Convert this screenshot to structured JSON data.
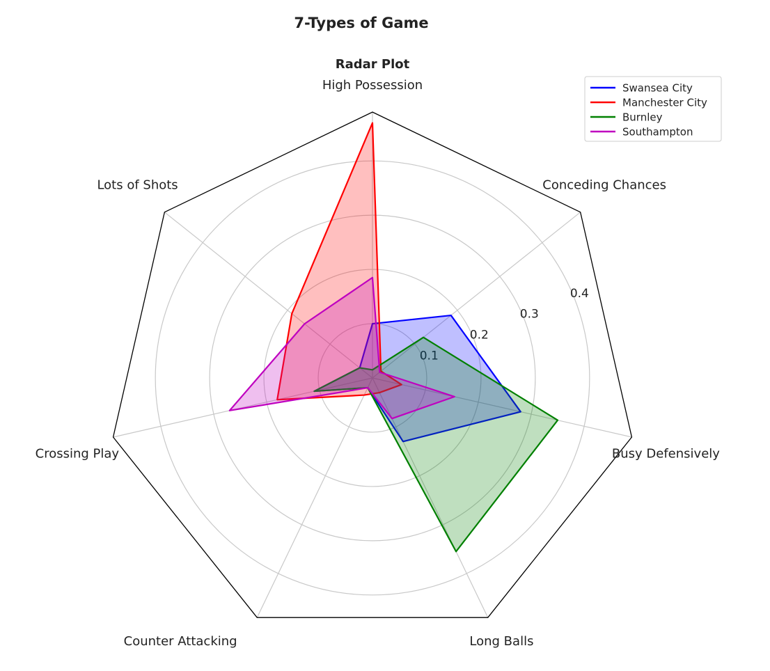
{
  "chart_data": {
    "type": "radar",
    "title": "7-Types of Game",
    "subtitle": "Radar Plot",
    "categories": [
      "High Possession",
      "Conceding Chances",
      "Busy Defensively",
      "Long Balls",
      "Counter Attacking",
      "Crossing Play",
      "Lots of Shots"
    ],
    "series": [
      {
        "name": "Swansea City",
        "color": "#0000ff",
        "values": [
          0.1,
          0.185,
          0.28,
          0.13,
          0.02,
          0.11,
          0.03
        ]
      },
      {
        "name": "Manchester City",
        "color": "#ff0000",
        "values": [
          0.47,
          0.02,
          0.055,
          0.03,
          0.035,
          0.18,
          0.19
        ]
      },
      {
        "name": "Burnley",
        "color": "#008000",
        "values": [
          0.015,
          0.12,
          0.35,
          0.355,
          0.02,
          0.11,
          0.03
        ]
      },
      {
        "name": "Southampton",
        "color": "#bf00bf",
        "values": [
          0.185,
          0.017,
          0.155,
          0.083,
          0.02,
          0.27,
          0.16
        ]
      }
    ],
    "ylim": [
      0,
      0.49
    ],
    "yticks": [
      0.1,
      0.2,
      0.3,
      0.4
    ],
    "grid": true,
    "legend": "upper right"
  }
}
